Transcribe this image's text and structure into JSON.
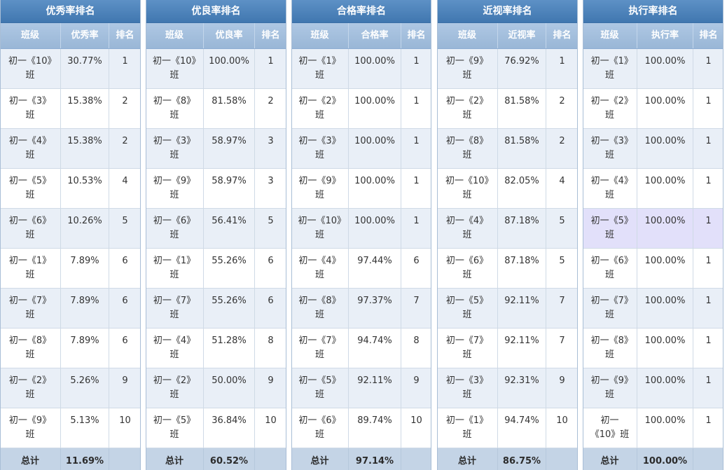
{
  "theme": {
    "title_bg": "#4580bd",
    "header_bg": "#a0bedf",
    "row_alt_bg": "#e9eff7",
    "row_hover_bg": "#e2e0fa",
    "total_bg": "#c4d4e6",
    "grid_line": "#cfdae6"
  },
  "panels": [
    {
      "title": "优秀率排名",
      "columns": [
        "班级",
        "优秀率",
        "排名"
      ],
      "rows": [
        {
          "class": "初一《10》班",
          "rate": "30.77%",
          "rank": "1"
        },
        {
          "class": "初一《3》班",
          "rate": "15.38%",
          "rank": "2"
        },
        {
          "class": "初一《4》班",
          "rate": "15.38%",
          "rank": "2"
        },
        {
          "class": "初一《5》班",
          "rate": "10.53%",
          "rank": "4"
        },
        {
          "class": "初一《6》班",
          "rate": "10.26%",
          "rank": "5"
        },
        {
          "class": "初一《1》班",
          "rate": "7.89%",
          "rank": "6"
        },
        {
          "class": "初一《7》班",
          "rate": "7.89%",
          "rank": "6"
        },
        {
          "class": "初一《8》班",
          "rate": "7.89%",
          "rank": "6"
        },
        {
          "class": "初一《2》班",
          "rate": "5.26%",
          "rank": "9"
        },
        {
          "class": "初一《9》班",
          "rate": "5.13%",
          "rank": "10"
        }
      ],
      "total": {
        "label": "总计",
        "rate": "11.69%"
      }
    },
    {
      "title": "优良率排名",
      "columns": [
        "班级",
        "优良率",
        "排名"
      ],
      "rows": [
        {
          "class": "初一《10》班",
          "rate": "100.00%",
          "rank": "1"
        },
        {
          "class": "初一《8》班",
          "rate": "81.58%",
          "rank": "2"
        },
        {
          "class": "初一《3》班",
          "rate": "58.97%",
          "rank": "3"
        },
        {
          "class": "初一《9》班",
          "rate": "58.97%",
          "rank": "3"
        },
        {
          "class": "初一《6》班",
          "rate": "56.41%",
          "rank": "5"
        },
        {
          "class": "初一《1》班",
          "rate": "55.26%",
          "rank": "6"
        },
        {
          "class": "初一《7》班",
          "rate": "55.26%",
          "rank": "6"
        },
        {
          "class": "初一《4》班",
          "rate": "51.28%",
          "rank": "8"
        },
        {
          "class": "初一《2》班",
          "rate": "50.00%",
          "rank": "9"
        },
        {
          "class": "初一《5》班",
          "rate": "36.84%",
          "rank": "10"
        }
      ],
      "total": {
        "label": "总计",
        "rate": "60.52%"
      }
    },
    {
      "title": "合格率排名",
      "columns": [
        "班级",
        "合格率",
        "排名"
      ],
      "rows": [
        {
          "class": "初一《1》班",
          "rate": "100.00%",
          "rank": "1"
        },
        {
          "class": "初一《2》班",
          "rate": "100.00%",
          "rank": "1"
        },
        {
          "class": "初一《3》班",
          "rate": "100.00%",
          "rank": "1"
        },
        {
          "class": "初一《9》班",
          "rate": "100.00%",
          "rank": "1"
        },
        {
          "class": "初一《10》班",
          "rate": "100.00%",
          "rank": "1"
        },
        {
          "class": "初一《4》班",
          "rate": "97.44%",
          "rank": "6"
        },
        {
          "class": "初一《8》班",
          "rate": "97.37%",
          "rank": "7"
        },
        {
          "class": "初一《7》班",
          "rate": "94.74%",
          "rank": "8"
        },
        {
          "class": "初一《5》班",
          "rate": "92.11%",
          "rank": "9"
        },
        {
          "class": "初一《6》班",
          "rate": "89.74%",
          "rank": "10"
        }
      ],
      "total": {
        "label": "总计",
        "rate": "97.14%"
      }
    },
    {
      "title": "近视率排名",
      "columns": [
        "班级",
        "近视率",
        "排名"
      ],
      "rows": [
        {
          "class": "初一《9》班",
          "rate": "76.92%",
          "rank": "1"
        },
        {
          "class": "初一《2》班",
          "rate": "81.58%",
          "rank": "2"
        },
        {
          "class": "初一《8》班",
          "rate": "81.58%",
          "rank": "2"
        },
        {
          "class": "初一《10》班",
          "rate": "82.05%",
          "rank": "4"
        },
        {
          "class": "初一《4》班",
          "rate": "87.18%",
          "rank": "5"
        },
        {
          "class": "初一《6》班",
          "rate": "87.18%",
          "rank": "5"
        },
        {
          "class": "初一《5》班",
          "rate": "92.11%",
          "rank": "7"
        },
        {
          "class": "初一《7》班",
          "rate": "92.11%",
          "rank": "7"
        },
        {
          "class": "初一《3》班",
          "rate": "92.31%",
          "rank": "9"
        },
        {
          "class": "初一《1》班",
          "rate": "94.74%",
          "rank": "10"
        }
      ],
      "total": {
        "label": "总计",
        "rate": "86.75%"
      }
    },
    {
      "title": "执行率排名",
      "columns": [
        "班级",
        "执行率",
        "排名"
      ],
      "rows": [
        {
          "class": "初一《1》班",
          "rate": "100.00%",
          "rank": "1"
        },
        {
          "class": "初一《2》班",
          "rate": "100.00%",
          "rank": "1"
        },
        {
          "class": "初一《3》班",
          "rate": "100.00%",
          "rank": "1"
        },
        {
          "class": "初一《4》班",
          "rate": "100.00%",
          "rank": "1"
        },
        {
          "class": "初一《5》班",
          "rate": "100.00%",
          "rank": "1",
          "highlighted": true
        },
        {
          "class": "初一《6》班",
          "rate": "100.00%",
          "rank": "1"
        },
        {
          "class": "初一《7》班",
          "rate": "100.00%",
          "rank": "1"
        },
        {
          "class": "初一《8》班",
          "rate": "100.00%",
          "rank": "1"
        },
        {
          "class": "初一《9》班",
          "rate": "100.00%",
          "rank": "1"
        },
        {
          "class": "初一《10》班",
          "rate": "100.00%",
          "rank": "1"
        }
      ],
      "total": {
        "label": "总计",
        "rate": "100.00%"
      }
    }
  ]
}
